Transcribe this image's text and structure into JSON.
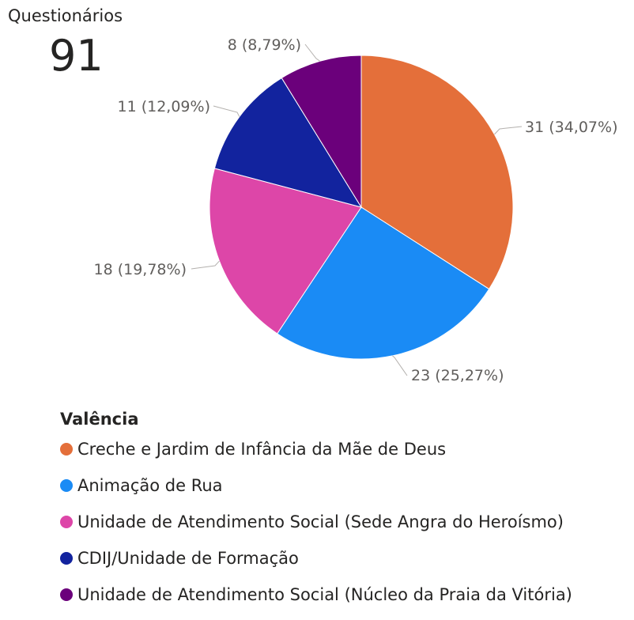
{
  "kpi": {
    "label": "Questionários",
    "value": "91"
  },
  "chart_data": {
    "type": "pie",
    "legend_title": "Valência",
    "legend_position": "bottom-left",
    "slices": [
      {
        "name": "Creche e Jardim de Infância da Mãe de Deus",
        "value": 31,
        "label": "31 (34,07%)",
        "color": "#E46F3A"
      },
      {
        "name": "Animação de Rua",
        "value": 23,
        "label": "23 (25,27%)",
        "color": "#1A8BF5"
      },
      {
        "name": "Unidade de Atendimento Social (Sede Angra do Heroísmo)",
        "value": 18,
        "label": "18 (19,78%)",
        "color": "#DD46A8"
      },
      {
        "name": "CDIJ/Unidade de Formação",
        "value": 11,
        "label": "11 (12,09%)",
        "color": "#12239E"
      },
      {
        "name": "Unidade de Atendimento Social (Núcleo da Praia da Vitória)",
        "value": 8,
        "label": "8 (8,79%)",
        "color": "#6B007B"
      }
    ]
  }
}
